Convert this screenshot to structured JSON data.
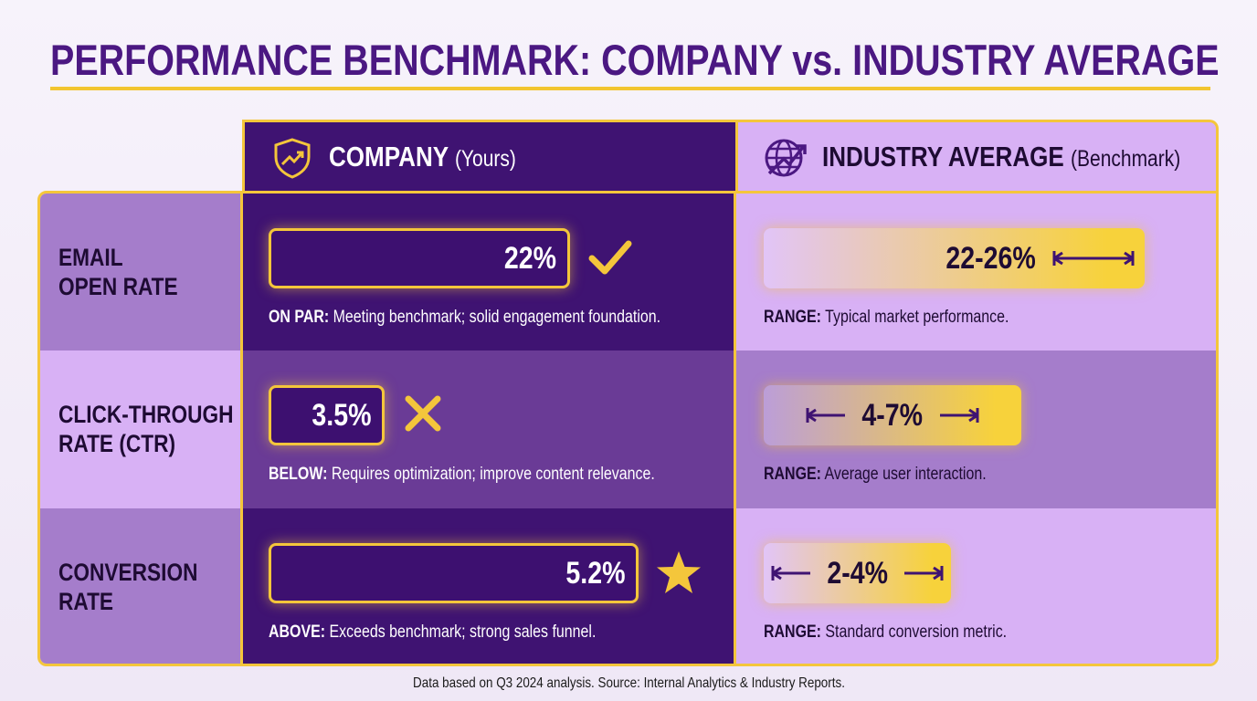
{
  "title": "PERFORMANCE BENCHMARK: COMPANY vs. INDUSTRY AVERAGE",
  "header": {
    "company": {
      "label": "COMPANY",
      "suffix": "(Yours)"
    },
    "industry": {
      "label": "INDUSTRY AVERAGE",
      "suffix": "(Benchmark)"
    }
  },
  "rows": [
    {
      "metric": [
        "EMAIL",
        "OPEN RATE"
      ],
      "company_value": "22%",
      "status": "ON PAR:",
      "company_note": "Meeting benchmark; solid engagement foundation.",
      "industry_value": "22-26%",
      "range_label": "RANGE:",
      "industry_note": "Typical market performance."
    },
    {
      "metric": [
        "CLICK-THROUGH",
        "RATE (CTR)"
      ],
      "company_value": "3.5%",
      "status": "BELOW:",
      "company_note": "Requires optimization; improve content relevance.",
      "industry_value": "4-7%",
      "range_label": "RANGE:",
      "industry_note": "Average user interaction."
    },
    {
      "metric": [
        "CONVERSION",
        "RATE"
      ],
      "company_value": "5.2%",
      "status": "ABOVE:",
      "company_note": "Exceeds benchmark; strong sales funnel.",
      "industry_value": "2-4%",
      "range_label": "RANGE:",
      "industry_note": "Standard conversion metric."
    }
  ],
  "footer": "Data based on Q3 2024 analysis. Source: Internal Analytics & Industry Reports."
}
